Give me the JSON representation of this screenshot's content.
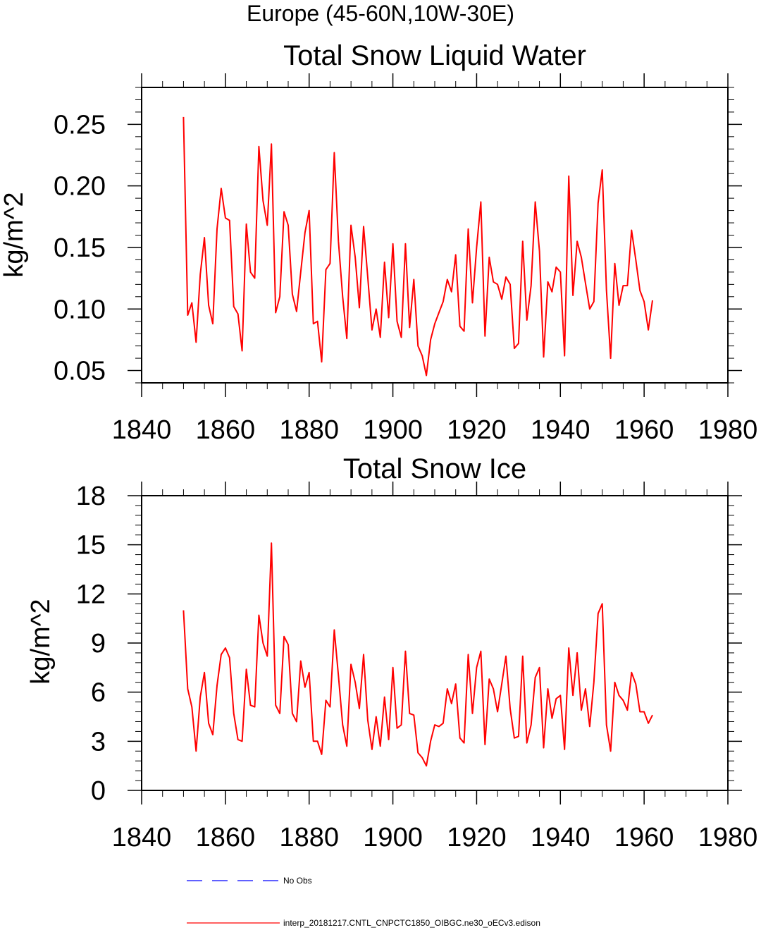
{
  "figure": {
    "suptitle": "Europe (45-60N,10W-30E)",
    "legend": [
      {
        "label": "No Obs",
        "color": "#0000ff",
        "dash": "dashed"
      },
      {
        "label": "interp_20181217.CNTL_CNPCTC1850_OIBGC.ne30_oECv3.edison",
        "color": "#ff0000",
        "dash": "solid"
      }
    ]
  },
  "chart_data": [
    {
      "type": "line",
      "title": "Total Snow Liquid Water",
      "xlabel": "",
      "ylabel": "kg/m^2",
      "xlim": [
        1840,
        1980
      ],
      "ylim": [
        0.04,
        0.28
      ],
      "xticks": [
        1840,
        1860,
        1880,
        1900,
        1920,
        1940,
        1960,
        1980
      ],
      "xtick_labels": [
        "1840",
        "1860",
        "1880",
        "1900",
        "1920",
        "1940",
        "1960",
        "1980"
      ],
      "yticks": [
        0.05,
        0.1,
        0.15,
        0.2,
        0.25
      ],
      "ytick_labels": [
        "0.05",
        "0.10",
        "0.15",
        "0.20",
        "0.25"
      ],
      "series": [
        {
          "name": "interp_20181217.CNTL_CNPCTC1850_OIBGC.ne30_oECv3.edison",
          "color": "#ff0000",
          "x": [
            1850,
            1851,
            1852,
            1853,
            1854,
            1855,
            1856,
            1857,
            1858,
            1859,
            1860,
            1861,
            1862,
            1863,
            1864,
            1865,
            1866,
            1867,
            1868,
            1869,
            1870,
            1871,
            1872,
            1873,
            1874,
            1875,
            1876,
            1877,
            1878,
            1879,
            1880,
            1881,
            1882,
            1883,
            1884,
            1885,
            1886,
            1887,
            1888,
            1889,
            1890,
            1891,
            1892,
            1893,
            1894,
            1895,
            1896,
            1897,
            1898,
            1899,
            1900,
            1901,
            1902,
            1903,
            1904,
            1905,
            1906,
            1907,
            1908,
            1909,
            1910,
            1911,
            1912,
            1913,
            1914,
            1915,
            1916,
            1917,
            1918,
            1919,
            1920,
            1921,
            1922,
            1923,
            1924,
            1925,
            1926,
            1927,
            1928,
            1929,
            1930,
            1931,
            1932,
            1933,
            1934,
            1935,
            1936,
            1937,
            1938,
            1939,
            1940,
            1941,
            1942,
            1943,
            1944,
            1945,
            1946,
            1947,
            1948,
            1949,
            1950,
            1951,
            1952,
            1953,
            1954,
            1955,
            1956,
            1957,
            1958,
            1959,
            1960,
            1961,
            1962
          ],
          "values": [
            0.256,
            0.095,
            0.105,
            0.073,
            0.128,
            0.158,
            0.103,
            0.088,
            0.165,
            0.198,
            0.174,
            0.172,
            0.102,
            0.096,
            0.066,
            0.169,
            0.13,
            0.125,
            0.232,
            0.188,
            0.168,
            0.234,
            0.097,
            0.11,
            0.179,
            0.168,
            0.112,
            0.098,
            0.13,
            0.162,
            0.18,
            0.088,
            0.09,
            0.057,
            0.132,
            0.137,
            0.227,
            0.155,
            0.11,
            0.076,
            0.168,
            0.142,
            0.101,
            0.167,
            0.126,
            0.083,
            0.1,
            0.077,
            0.138,
            0.093,
            0.153,
            0.09,
            0.077,
            0.153,
            0.085,
            0.124,
            0.07,
            0.062,
            0.046,
            0.075,
            0.088,
            0.097,
            0.106,
            0.124,
            0.114,
            0.144,
            0.086,
            0.082,
            0.165,
            0.105,
            0.15,
            0.187,
            0.078,
            0.142,
            0.122,
            0.12,
            0.108,
            0.126,
            0.12,
            0.068,
            0.072,
            0.155,
            0.091,
            0.119,
            0.187,
            0.147,
            0.061,
            0.122,
            0.114,
            0.134,
            0.13,
            0.062,
            0.208,
            0.111,
            0.155,
            0.142,
            0.121,
            0.1,
            0.106,
            0.186,
            0.213,
            0.115,
            0.06,
            0.137,
            0.103,
            0.119,
            0.119,
            0.164,
            0.14,
            0.115,
            0.106,
            0.083,
            0.107
          ]
        }
      ]
    },
    {
      "type": "line",
      "title": "Total Snow Ice",
      "xlabel": "",
      "ylabel": "kg/m^2",
      "xlim": [
        1840,
        1980
      ],
      "ylim": [
        0,
        18
      ],
      "xticks": [
        1840,
        1860,
        1880,
        1900,
        1920,
        1940,
        1960,
        1980
      ],
      "xtick_labels": [
        "1840",
        "1860",
        "1880",
        "1900",
        "1920",
        "1940",
        "1960",
        "1980"
      ],
      "yticks": [
        0,
        3,
        6,
        9,
        12,
        15,
        18
      ],
      "ytick_labels": [
        "0",
        "3",
        "6",
        "9",
        "12",
        "15",
        "18"
      ],
      "series": [
        {
          "name": "interp_20181217.CNTL_CNPCTC1850_OIBGC.ne30_oECv3.edison",
          "color": "#ff0000",
          "x": [
            1850,
            1851,
            1852,
            1853,
            1854,
            1855,
            1856,
            1857,
            1858,
            1859,
            1860,
            1861,
            1862,
            1863,
            1864,
            1865,
            1866,
            1867,
            1868,
            1869,
            1870,
            1871,
            1872,
            1873,
            1874,
            1875,
            1876,
            1877,
            1878,
            1879,
            1880,
            1881,
            1882,
            1883,
            1884,
            1885,
            1886,
            1887,
            1888,
            1889,
            1890,
            1891,
            1892,
            1893,
            1894,
            1895,
            1896,
            1897,
            1898,
            1899,
            1900,
            1901,
            1902,
            1903,
            1904,
            1905,
            1906,
            1907,
            1908,
            1909,
            1910,
            1911,
            1912,
            1913,
            1914,
            1915,
            1916,
            1917,
            1918,
            1919,
            1920,
            1921,
            1922,
            1923,
            1924,
            1925,
            1926,
            1927,
            1928,
            1929,
            1930,
            1931,
            1932,
            1933,
            1934,
            1935,
            1936,
            1937,
            1938,
            1939,
            1940,
            1941,
            1942,
            1943,
            1944,
            1945,
            1946,
            1947,
            1948,
            1949,
            1950,
            1951,
            1952,
            1953,
            1954,
            1955,
            1956,
            1957,
            1958,
            1959,
            1960,
            1961,
            1962
          ],
          "values": [
            11.0,
            6.2,
            5.1,
            2.4,
            5.7,
            7.2,
            4.1,
            3.4,
            6.4,
            8.3,
            8.7,
            8.1,
            4.7,
            3.1,
            3.0,
            7.4,
            5.2,
            5.1,
            10.7,
            9.0,
            8.2,
            15.1,
            5.2,
            4.7,
            9.4,
            8.9,
            4.7,
            4.2,
            7.9,
            6.3,
            7.2,
            3.0,
            3.0,
            2.2,
            5.5,
            5.1,
            9.8,
            7.0,
            4.0,
            2.7,
            7.7,
            6.6,
            5.0,
            8.3,
            4.3,
            2.5,
            4.5,
            2.7,
            5.7,
            3.1,
            7.5,
            3.8,
            4.0,
            8.5,
            4.7,
            4.6,
            2.3,
            2.0,
            1.5,
            3.0,
            4.0,
            3.9,
            4.1,
            6.2,
            5.3,
            6.5,
            3.2,
            2.9,
            8.3,
            4.7,
            7.5,
            8.5,
            2.8,
            6.8,
            6.2,
            4.8,
            6.5,
            8.2,
            5.0,
            3.2,
            3.3,
            8.2,
            2.9,
            4.0,
            6.9,
            7.5,
            2.6,
            6.2,
            4.4,
            5.6,
            5.8,
            2.5,
            8.7,
            5.8,
            8.4,
            4.9,
            6.2,
            3.9,
            6.6,
            10.8,
            11.4,
            4.0,
            2.4,
            6.6,
            5.8,
            5.5,
            4.9,
            7.2,
            6.5,
            4.8,
            4.8,
            4.1,
            4.6
          ]
        }
      ]
    }
  ]
}
